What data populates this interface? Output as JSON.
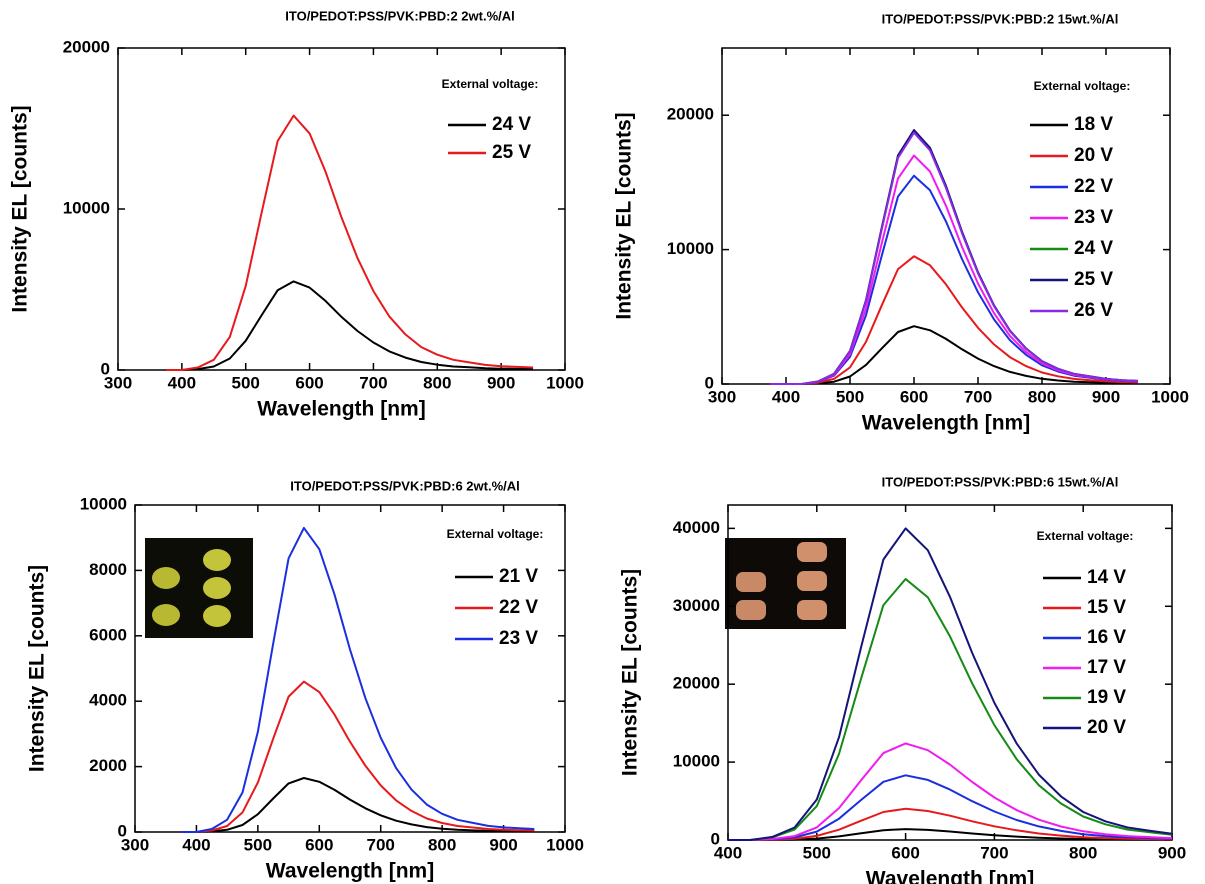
{
  "chart_data": [
    {
      "type": "line",
      "title": "ITO/PEDOT:PSS/PVK:PBD:2 2wt.%/Al",
      "x_label": "Wavelength [nm]",
      "y_label": "Intensity EL [counts]",
      "legend_title": "External voltage:",
      "x": [
        375,
        400,
        425,
        450,
        475,
        500,
        525,
        550,
        575,
        600,
        625,
        650,
        675,
        700,
        725,
        750,
        775,
        800,
        825,
        850,
        875,
        900,
        925,
        950
      ],
      "series": [
        {
          "name": "24 V",
          "color": "#000000",
          "values": [
            0,
            0,
            55,
            220,
            715,
            1815,
            3410,
            4950,
            5500,
            5115,
            4290,
            3300,
            2420,
            1705,
            1155,
            770,
            495,
            330,
            220,
            165,
            110,
            83,
            66,
            55
          ]
        },
        {
          "name": "25 V",
          "color": "#e8191c",
          "values": [
            0,
            0,
            158,
            632,
            2054,
            5214,
            9796,
            14220,
            15800,
            14694,
            12324,
            9480,
            6952,
            4898,
            3318,
            2212,
            1422,
            948,
            632,
            474,
            316,
            237,
            190,
            158
          ]
        }
      ],
      "xlim": [
        300,
        1000
      ],
      "ylim": [
        0,
        20000
      ],
      "xticks": [
        300,
        400,
        500,
        600,
        700,
        800,
        900,
        1000
      ],
      "yticks": [
        0,
        10000,
        20000
      ]
    },
    {
      "type": "line",
      "title": "ITO/PEDOT:PSS/PVK:PBD:2 15wt.%/Al",
      "x_label": "Wavelength [nm]",
      "y_label": "Intensity EL [counts]",
      "legend_title": "External voltage:",
      "x": [
        375,
        400,
        425,
        450,
        475,
        500,
        525,
        550,
        575,
        600,
        625,
        650,
        675,
        700,
        725,
        750,
        775,
        800,
        825,
        850,
        875,
        900,
        925,
        950
      ],
      "series": [
        {
          "name": "18 V",
          "color": "#000000",
          "values": [
            0,
            0,
            0,
            43,
            172,
            559,
            1419,
            2666,
            3870,
            4300,
            3999,
            3354,
            2580,
            1892,
            1333,
            903,
            602,
            387,
            258,
            172,
            129,
            86,
            65,
            52
          ]
        },
        {
          "name": "20 V",
          "color": "#e8191c",
          "values": [
            0,
            0,
            0,
            95,
            380,
            1235,
            3135,
            5890,
            8550,
            9500,
            8835,
            7410,
            5700,
            4180,
            2945,
            1995,
            1330,
            855,
            570,
            380,
            285,
            190,
            143,
            114
          ]
        },
        {
          "name": "22 V",
          "color": "#1a2fe0",
          "values": [
            0,
            0,
            0,
            155,
            620,
            2015,
            5115,
            9610,
            13950,
            15500,
            14415,
            12090,
            9300,
            6820,
            4805,
            3255,
            2170,
            1395,
            930,
            620,
            465,
            310,
            233,
            186
          ]
        },
        {
          "name": "23 V",
          "color": "#f01cf0",
          "values": [
            0,
            0,
            0,
            170,
            680,
            2210,
            5610,
            10540,
            15300,
            17000,
            15810,
            13260,
            10200,
            7480,
            5270,
            3570,
            2380,
            1530,
            1020,
            680,
            510,
            340,
            255,
            204
          ]
        },
        {
          "name": "24 V",
          "color": "#158a15",
          "values": [
            0,
            0,
            0,
            188,
            752,
            2444,
            6204,
            11656,
            16920,
            18800,
            17484,
            14664,
            11280,
            8272,
            5828,
            3948,
            2632,
            1692,
            1128,
            752,
            564,
            376,
            282,
            226
          ]
        },
        {
          "name": "25 V",
          "color": "#14147a",
          "values": [
            0,
            0,
            0,
            189,
            756,
            2457,
            6237,
            11718,
            17010,
            18900,
            17577,
            14742,
            11340,
            8316,
            5859,
            3969,
            2646,
            1701,
            1134,
            756,
            567,
            378,
            284,
            227
          ]
        },
        {
          "name": "26 V",
          "color": "#8a2be2",
          "values": [
            0,
            0,
            0,
            187,
            748,
            2431,
            6171,
            11594,
            16830,
            18700,
            17391,
            14586,
            11220,
            8228,
            5797,
            3927,
            2618,
            1683,
            1122,
            748,
            561,
            374,
            281,
            224
          ]
        }
      ],
      "xlim": [
        300,
        1000
      ],
      "ylim": [
        0,
        25000
      ],
      "xticks": [
        300,
        400,
        500,
        600,
        700,
        800,
        900,
        1000
      ],
      "yticks": [
        0,
        10000,
        20000
      ]
    },
    {
      "type": "line",
      "title": "ITO/PEDOT:PSS/PVK:PBD:6 2wt.%/Al",
      "x_label": "Wavelength [nm]",
      "y_label": "Intensity EL [counts]",
      "legend_title": "External voltage:",
      "x": [
        375,
        400,
        425,
        450,
        475,
        500,
        525,
        550,
        575,
        600,
        625,
        650,
        675,
        700,
        725,
        750,
        775,
        800,
        825,
        850,
        875,
        900,
        925,
        950
      ],
      "series": [
        {
          "name": "21 V",
          "color": "#000000",
          "values": [
            0,
            0,
            17,
            66,
            215,
            545,
            1023,
            1485,
            1650,
            1535,
            1287,
            990,
            726,
            512,
            347,
            231,
            149,
            99,
            66,
            50,
            33,
            25,
            20,
            17
          ]
        },
        {
          "name": "22 V",
          "color": "#e8191c",
          "values": [
            0,
            0,
            46,
            184,
            598,
            1518,
            2852,
            4140,
            4600,
            4278,
            3588,
            2760,
            2024,
            1426,
            966,
            644,
            414,
            276,
            184,
            138,
            92,
            69,
            55,
            46
          ]
        },
        {
          "name": "23 V",
          "color": "#1a2fe0",
          "values": [
            0,
            0,
            93,
            372,
            1209,
            3069,
            5766,
            8370,
            9300,
            8649,
            7254,
            5580,
            4092,
            2883,
            1953,
            1302,
            837,
            558,
            372,
            279,
            186,
            140,
            112,
            93
          ]
        }
      ],
      "xlim": [
        300,
        1000
      ],
      "ylim": [
        0,
        10000
      ],
      "xticks": [
        300,
        400,
        500,
        600,
        700,
        800,
        900,
        1000
      ],
      "yticks": [
        0,
        2000,
        4000,
        6000,
        8000,
        10000
      ]
    },
    {
      "type": "line",
      "title": "ITO/PEDOT:PSS/PVK:PBD:6 15wt.%/Al",
      "x_label": "Wavelength [nm]",
      "y_label": "Intensity EL [counts]",
      "legend_title": "External voltage:",
      "x": [
        400,
        425,
        450,
        475,
        500,
        525,
        550,
        575,
        600,
        625,
        650,
        675,
        700,
        725,
        750,
        775,
        800,
        825,
        850,
        875,
        900
      ],
      "series": [
        {
          "name": "14 V",
          "color": "#000000",
          "values": [
            0,
            0,
            14,
            56,
            182,
            462,
            868,
            1260,
            1400,
            1302,
            1092,
            840,
            616,
            434,
            294,
            196,
            126,
            84,
            56,
            42,
            28
          ]
        },
        {
          "name": "15 V",
          "color": "#e8191c",
          "values": [
            0,
            0,
            40,
            160,
            520,
            1320,
            2480,
            3600,
            4000,
            3720,
            3120,
            2400,
            1760,
            1240,
            840,
            560,
            360,
            240,
            160,
            120,
            80
          ]
        },
        {
          "name": "16 V",
          "color": "#1a2fe0",
          "values": [
            0,
            0,
            83,
            332,
            1079,
            2739,
            5146,
            7470,
            8300,
            7719,
            6474,
            4980,
            3652,
            2573,
            1743,
            1162,
            747,
            498,
            332,
            249,
            166
          ]
        },
        {
          "name": "17 V",
          "color": "#f01cf0",
          "values": [
            0,
            0,
            124,
            496,
            1612,
            4092,
            7688,
            11160,
            12400,
            11532,
            9672,
            7440,
            5456,
            3844,
            2604,
            1736,
            1116,
            744,
            496,
            372,
            248
          ]
        },
        {
          "name": "19 V",
          "color": "#158a15",
          "values": [
            0,
            0,
            335,
            1340,
            4355,
            11055,
            20770,
            30150,
            33500,
            31155,
            26130,
            20100,
            14740,
            10385,
            7035,
            4690,
            3015,
            2010,
            1340,
            1005,
            670
          ]
        },
        {
          "name": "20 V",
          "color": "#14147a",
          "values": [
            0,
            0,
            400,
            1600,
            5200,
            13200,
            24800,
            36000,
            40000,
            37200,
            31200,
            24000,
            17600,
            12400,
            8400,
            5600,
            3600,
            2400,
            1600,
            1200,
            800
          ]
        }
      ],
      "xlim": [
        400,
        900
      ],
      "ylim": [
        0,
        43000
      ],
      "xticks": [
        400,
        500,
        600,
        700,
        800,
        900
      ],
      "yticks": [
        0,
        10000,
        20000,
        30000,
        40000
      ]
    }
  ]
}
